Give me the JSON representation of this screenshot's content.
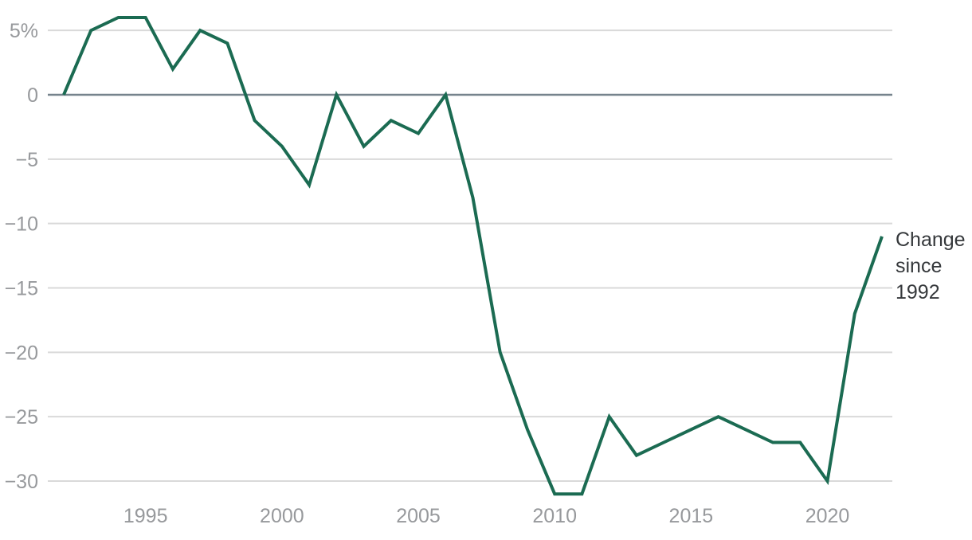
{
  "chart_data": {
    "type": "line",
    "title": "",
    "xlabel": "",
    "ylabel": "",
    "grid": true,
    "legend_position": "right-of-line-end",
    "xlim": [
      1992,
      2022
    ],
    "ylim": [
      -31,
      6
    ],
    "x": [
      1992,
      1993,
      1994,
      1995,
      1996,
      1997,
      1998,
      1999,
      2000,
      2001,
      2002,
      2003,
      2004,
      2005,
      2006,
      2007,
      2008,
      2009,
      2010,
      2011,
      2012,
      2013,
      2014,
      2015,
      2016,
      2017,
      2018,
      2019,
      2020,
      2021,
      2022
    ],
    "series": [
      {
        "name": "Change since 1992",
        "values": [
          0,
          5,
          6,
          6,
          2,
          5,
          4,
          -2,
          -4,
          -7,
          0,
          -4,
          -2,
          -3,
          0,
          -8,
          -20,
          -26,
          -31,
          -31,
          -25,
          -28,
          -27,
          -26,
          -25,
          -26,
          -27,
          -27,
          -30,
          -17,
          -11
        ]
      }
    ],
    "annotation": {
      "lines": [
        "Change",
        "since",
        "1992"
      ]
    },
    "xticks": [
      {
        "value": 1995,
        "label": "1995"
      },
      {
        "value": 2000,
        "label": "2000"
      },
      {
        "value": 2005,
        "label": "2005"
      },
      {
        "value": 2010,
        "label": "2010"
      },
      {
        "value": 2015,
        "label": "2015"
      },
      {
        "value": 2020,
        "label": "2020"
      }
    ],
    "yticks": [
      {
        "value": 5,
        "label": "5%"
      },
      {
        "value": 0,
        "label": "0"
      },
      {
        "value": -5,
        "label": "−5"
      },
      {
        "value": -10,
        "label": "−10"
      },
      {
        "value": -15,
        "label": "−15"
      },
      {
        "value": -20,
        "label": "−20"
      },
      {
        "value": -25,
        "label": "−25"
      },
      {
        "value": -30,
        "label": "−30"
      }
    ],
    "colors": {
      "line": "#1b6b52",
      "grid": "#d9d9d9",
      "zero_line": "#76838d",
      "tick_text": "#97999c",
      "annotation_text": "#35383b",
      "background": "#ffffff"
    }
  }
}
